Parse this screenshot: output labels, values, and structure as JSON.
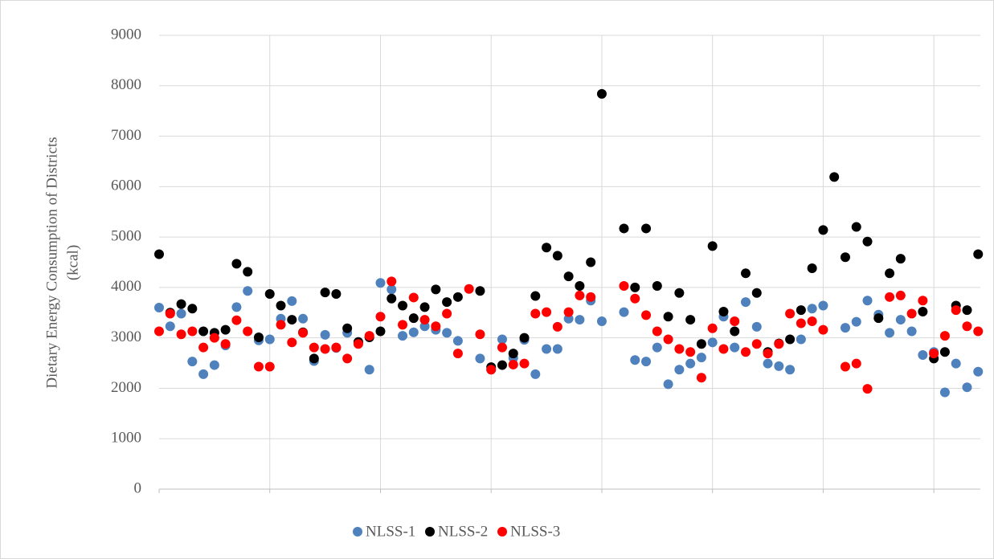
{
  "chart_data": {
    "type": "scatter",
    "ylabel": [
      "Dietary Energy Consumption of Districts",
      "(kcal)"
    ],
    "x": [
      1,
      2,
      3,
      4,
      5,
      6,
      7,
      8,
      9,
      10,
      11,
      12,
      13,
      14,
      15,
      16,
      17,
      18,
      19,
      20,
      21,
      22,
      23,
      24,
      25,
      26,
      27,
      28,
      29,
      30,
      31,
      32,
      33,
      34,
      35,
      36,
      37,
      38,
      39,
      40,
      41,
      42,
      43,
      44,
      45,
      46,
      47,
      48,
      49,
      50,
      51,
      52,
      53,
      54,
      55,
      56,
      57,
      58,
      59,
      60,
      61,
      62,
      63,
      64,
      65,
      66,
      67,
      68,
      69,
      70,
      71,
      72,
      73,
      74,
      75
    ],
    "xlim": [
      1,
      75.2
    ],
    "xticks": [
      1,
      11,
      21,
      31,
      41,
      51,
      61,
      71
    ],
    "ylim": [
      0,
      9000
    ],
    "yticks": [
      0,
      1000,
      2000,
      3000,
      4000,
      5000,
      6000,
      7000,
      8000,
      9000
    ],
    "grid": true,
    "legend": "bottom",
    "series": [
      {
        "name": "NLSS-1",
        "color": "#4f81bd",
        "values": [
          3600,
          3230,
          3480,
          2530,
          2280,
          2460,
          2850,
          3610,
          3930,
          2950,
          2970,
          3380,
          3730,
          3380,
          2540,
          3060,
          2800,
          3100,
          2910,
          2370,
          4090,
          3960,
          3040,
          3110,
          3230,
          3160,
          3100,
          2940,
          null,
          2590,
          2370,
          2970,
          2600,
          2960,
          2280,
          2780,
          2780,
          3380,
          3360,
          3740,
          3330,
          null,
          3510,
          2560,
          2530,
          2810,
          2080,
          2370,
          2490,
          2610,
          2910,
          3420,
          2810,
          3710,
          3220,
          2490,
          2440,
          2370,
          2970,
          3580,
          3640,
          null,
          3200,
          3320,
          3740,
          3460,
          3100,
          3360,
          3130,
          2660,
          2720,
          1920,
          2490,
          2020,
          2330
        ]
      },
      {
        "name": "NLSS-2",
        "color": "#000000",
        "values": [
          4660,
          3500,
          3670,
          3580,
          3130,
          3100,
          3160,
          4470,
          4310,
          3010,
          3870,
          3640,
          3360,
          3110,
          2590,
          3900,
          3870,
          3190,
          2920,
          3010,
          3130,
          3780,
          3640,
          3390,
          3610,
          3960,
          3710,
          3810,
          null,
          3930,
          2420,
          2460,
          2690,
          3000,
          3830,
          4790,
          4630,
          4220,
          4030,
          4500,
          7840,
          null,
          5170,
          4000,
          5170,
          4030,
          3420,
          3890,
          3360,
          2880,
          4820,
          3520,
          3130,
          4280,
          3890,
          2720,
          2890,
          2970,
          3550,
          4380,
          5140,
          6190,
          4600,
          5200,
          4910,
          3390,
          4280,
          4570,
          null,
          3520,
          2590,
          2720,
          3640,
          3550,
          4660
        ]
      },
      {
        "name": "NLSS-3",
        "color": "#ff0000",
        "values": [
          3130,
          3480,
          3070,
          3130,
          2810,
          3000,
          2880,
          3350,
          3130,
          2430,
          2430,
          3260,
          2910,
          3100,
          2810,
          2780,
          2810,
          2590,
          2880,
          3040,
          3420,
          4120,
          3260,
          3800,
          3360,
          3230,
          3480,
          2690,
          3970,
          3070,
          2370,
          2810,
          2470,
          2490,
          3480,
          3510,
          3220,
          3510,
          3840,
          3810,
          null,
          null,
          4030,
          3780,
          3450,
          3130,
          2970,
          2780,
          2720,
          2210,
          3190,
          2780,
          3330,
          2720,
          2880,
          2690,
          2880,
          3480,
          3290,
          3330,
          3160,
          null,
          2430,
          2490,
          1990,
          null,
          3810,
          3840,
          3480,
          3740,
          2690,
          3040,
          3550,
          3230,
          3130
        ]
      }
    ]
  }
}
